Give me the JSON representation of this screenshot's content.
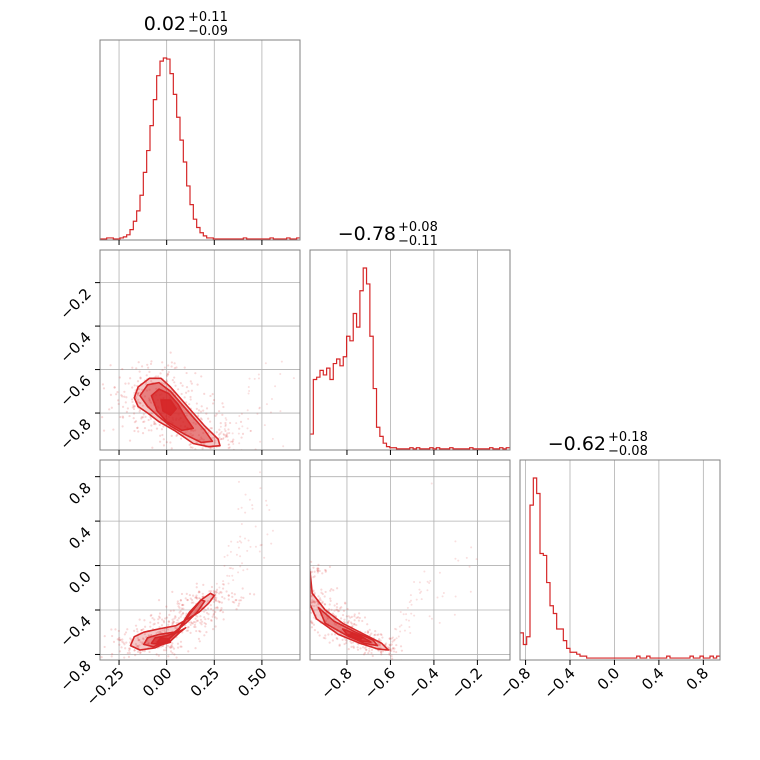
{
  "chart_data": {
    "type": "corner",
    "colors": {
      "series": "#d62728",
      "grid": "#b0b0b0",
      "frame": "#808080"
    },
    "parameters": [
      {
        "title": {
          "median": "0.02",
          "plus": "+0.11",
          "minus": "−0.09"
        },
        "range": [
          -0.35,
          0.7
        ],
        "ticks": [
          -0.25,
          0.0,
          0.25,
          0.5
        ],
        "tick_labels": [
          "−0.25",
          "0.00",
          "0.25",
          "0.50"
        ]
      },
      {
        "title": {
          "median": "−0.78",
          "plus": "+0.08",
          "minus": "−0.11"
        },
        "range": [
          -0.97,
          -0.05
        ],
        "ticks": [
          -0.8,
          -0.6,
          -0.4,
          -0.2
        ],
        "tick_labels": [
          "−0.8",
          "−0.6",
          "−0.4",
          "−0.2"
        ]
      },
      {
        "title": {
          "median": "−0.62",
          "plus": "+0.18",
          "minus": "−0.08"
        },
        "range": [
          -0.85,
          0.95
        ],
        "ticks": [
          -0.8,
          -0.4,
          0.0,
          0.4,
          0.8
        ],
        "tick_labels": [
          "−0.8",
          "−0.4",
          "0.0",
          "0.4",
          "0.8"
        ]
      }
    ],
    "histograms": [
      {
        "param": 0,
        "start": -0.35,
        "bin_width": 0.0175,
        "counts": [
          1,
          1,
          2,
          2,
          1,
          1,
          2,
          3,
          5,
          10,
          18,
          28,
          43,
          65,
          86,
          110,
          135,
          158,
          172,
          175,
          174,
          160,
          140,
          118,
          96,
          75,
          52,
          34,
          20,
          12,
          7,
          4,
          2,
          2,
          1,
          1,
          1,
          1,
          1,
          1,
          1,
          1,
          1,
          2,
          1,
          1,
          1,
          1,
          1,
          1,
          1,
          2,
          1,
          1,
          1,
          1,
          2,
          1,
          1,
          2
        ]
      },
      {
        "param": 1,
        "start": -0.97,
        "bin_width": 0.0153,
        "counts": [
          14,
          62,
          64,
          70,
          66,
          72,
          62,
          76,
          80,
          74,
          82,
          100,
          96,
          120,
          108,
          140,
          160,
          146,
          100,
          54,
          20,
          12,
          6,
          3,
          2,
          2,
          1,
          1,
          1,
          1,
          2,
          1,
          2,
          1,
          1,
          1,
          2,
          1,
          2,
          1,
          1,
          1,
          2,
          1,
          1,
          1,
          1,
          1,
          2,
          1,
          1,
          1,
          1,
          1,
          2,
          1,
          1,
          2,
          1,
          2
        ]
      },
      {
        "param": 2,
        "start": -0.85,
        "bin_width": 0.03,
        "counts": [
          14,
          8,
          12,
          80,
          94,
          86,
          55,
          54,
          40,
          28,
          24,
          16,
          16,
          10,
          6,
          4,
          4,
          3,
          2,
          2,
          1,
          1,
          1,
          1,
          1,
          1,
          1,
          1,
          1,
          1,
          1,
          1,
          1,
          1,
          1,
          2,
          1,
          1,
          2,
          1,
          1,
          1,
          1,
          1,
          2,
          1,
          1,
          1,
          1,
          1,
          1,
          2,
          1,
          1,
          2,
          1,
          1,
          2,
          1,
          2
        ]
      }
    ],
    "contours": [
      {
        "x_param": 0,
        "y_param": 1,
        "levels": [
          [
            [
              -0.17,
              -0.73
            ],
            [
              -0.15,
              -0.68
            ],
            [
              -0.09,
              -0.64
            ],
            [
              -0.03,
              -0.64
            ],
            [
              0.02,
              -0.68
            ],
            [
              0.08,
              -0.74
            ],
            [
              0.13,
              -0.79
            ],
            [
              0.2,
              -0.86
            ],
            [
              0.27,
              -0.92
            ],
            [
              0.28,
              -0.95
            ],
            [
              0.22,
              -0.955
            ],
            [
              0.14,
              -0.94
            ],
            [
              0.04,
              -0.88
            ],
            [
              -0.04,
              -0.84
            ],
            [
              -0.1,
              -0.8
            ],
            [
              -0.15,
              -0.77
            ]
          ],
          [
            [
              -0.14,
              -0.72
            ],
            [
              -0.1,
              -0.67
            ],
            [
              -0.04,
              -0.66
            ],
            [
              0.02,
              -0.7
            ],
            [
              0.08,
              -0.76
            ],
            [
              0.13,
              -0.81
            ],
            [
              0.2,
              -0.88
            ],
            [
              0.24,
              -0.93
            ],
            [
              0.18,
              -0.935
            ],
            [
              0.1,
              -0.9
            ],
            [
              0.02,
              -0.86
            ],
            [
              -0.05,
              -0.81
            ],
            [
              -0.1,
              -0.77
            ]
          ],
          [
            [
              -0.08,
              -0.72
            ],
            [
              -0.04,
              -0.69
            ],
            [
              0.01,
              -0.71
            ],
            [
              0.06,
              -0.76
            ],
            [
              0.1,
              -0.82
            ],
            [
              0.14,
              -0.87
            ],
            [
              0.08,
              -0.88
            ],
            [
              0.0,
              -0.84
            ],
            [
              -0.05,
              -0.79
            ]
          ],
          [
            [
              -0.03,
              -0.74
            ],
            [
              0.02,
              -0.74
            ],
            [
              0.05,
              -0.78
            ],
            [
              0.02,
              -0.81
            ],
            [
              -0.02,
              -0.79
            ]
          ]
        ],
        "scatter_scale": [
          0.09,
          0.06
        ]
      },
      {
        "x_param": 0,
        "y_param": 2,
        "levels": [
          [
            [
              -0.19,
              -0.72
            ],
            [
              -0.17,
              -0.64
            ],
            [
              -0.12,
              -0.6
            ],
            [
              -0.04,
              -0.57
            ],
            [
              0.05,
              -0.54
            ],
            [
              0.11,
              -0.48
            ],
            [
              0.17,
              -0.42
            ],
            [
              0.22,
              -0.34
            ],
            [
              0.25,
              -0.27
            ],
            [
              0.23,
              -0.25
            ],
            [
              0.18,
              -0.31
            ],
            [
              0.12,
              -0.42
            ],
            [
              0.06,
              -0.58
            ],
            [
              -0.01,
              -0.7
            ],
            [
              -0.06,
              -0.74
            ],
            [
              -0.14,
              -0.76
            ]
          ],
          [
            [
              -0.12,
              -0.71
            ],
            [
              -0.1,
              -0.65
            ],
            [
              -0.04,
              -0.62
            ],
            [
              0.04,
              -0.6
            ],
            [
              0.1,
              -0.52
            ],
            [
              0.16,
              -0.42
            ],
            [
              0.2,
              -0.32
            ],
            [
              0.18,
              -0.31
            ],
            [
              0.12,
              -0.44
            ],
            [
              0.06,
              -0.59
            ],
            [
              -0.01,
              -0.69
            ],
            [
              -0.07,
              -0.73
            ]
          ],
          [
            [
              -0.08,
              -0.7
            ],
            [
              -0.06,
              -0.65
            ],
            [
              0.0,
              -0.63
            ],
            [
              0.06,
              -0.6
            ],
            [
              0.1,
              -0.56
            ],
            [
              0.07,
              -0.6
            ],
            [
              0.02,
              -0.68
            ],
            [
              -0.03,
              -0.71
            ]
          ],
          [
            [
              -0.05,
              -0.69
            ],
            [
              -0.03,
              -0.65
            ],
            [
              0.01,
              -0.66
            ],
            [
              0.02,
              -0.69
            ],
            [
              -0.02,
              -0.71
            ]
          ]
        ],
        "scatter_scale": [
          0.09,
          0.05
        ]
      },
      {
        "x_param": 1,
        "y_param": 2,
        "levels": [
          [
            [
              -0.97,
              -0.05
            ],
            [
              -0.96,
              -0.25
            ],
            [
              -0.9,
              -0.4
            ],
            [
              -0.82,
              -0.52
            ],
            [
              -0.72,
              -0.62
            ],
            [
              -0.64,
              -0.7
            ],
            [
              -0.61,
              -0.76
            ],
            [
              -0.66,
              -0.75
            ],
            [
              -0.74,
              -0.7
            ],
            [
              -0.84,
              -0.62
            ],
            [
              -0.94,
              -0.48
            ],
            [
              -0.97,
              -0.35
            ]
          ],
          [
            [
              -0.93,
              -0.38
            ],
            [
              -0.86,
              -0.5
            ],
            [
              -0.76,
              -0.6
            ],
            [
              -0.68,
              -0.67
            ],
            [
              -0.66,
              -0.72
            ],
            [
              -0.72,
              -0.7
            ],
            [
              -0.8,
              -0.63
            ],
            [
              -0.9,
              -0.52
            ]
          ],
          [
            [
              -0.82,
              -0.57
            ],
            [
              -0.74,
              -0.63
            ],
            [
              -0.69,
              -0.69
            ],
            [
              -0.73,
              -0.68
            ],
            [
              -0.8,
              -0.62
            ]
          ],
          [
            [
              -0.78,
              -0.61
            ],
            [
              -0.73,
              -0.65
            ],
            [
              -0.74,
              -0.67
            ],
            [
              -0.79,
              -0.64
            ]
          ]
        ],
        "scatter_scale": [
          0.05,
          0.04
        ]
      }
    ]
  }
}
